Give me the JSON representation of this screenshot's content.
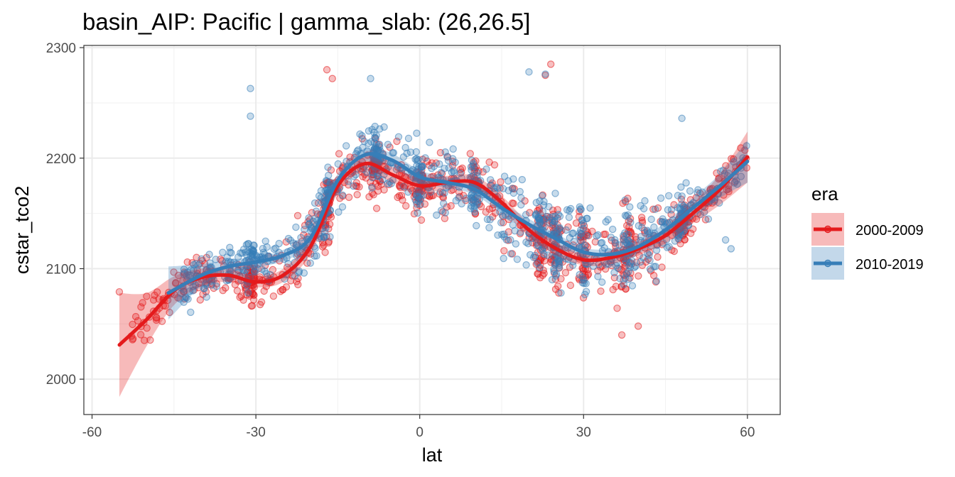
{
  "chart_data": {
    "type": "scatter",
    "title": "basin_AIP: Pacific | gamma_slab:  (26,26.5]",
    "xlabel": "lat",
    "ylabel": "cstar_tco2",
    "xlim": [
      -61.5,
      66
    ],
    "ylim": [
      1968,
      2302
    ],
    "x_ticks": [
      -60,
      -30,
      0,
      30,
      60
    ],
    "x_tick_labels": [
      "-60",
      "-30",
      "0",
      "30",
      "60"
    ],
    "y_ticks": [
      2000,
      2100,
      2200,
      2300
    ],
    "y_tick_labels": [
      "2000",
      "2100",
      "2200",
      "2300"
    ],
    "grid": true,
    "legend": {
      "title": "era",
      "position": "right"
    },
    "series": [
      {
        "name": "2000-2009",
        "color": "#e41a1c",
        "smooth": {
          "x": [
            -55,
            -50,
            -45,
            -40,
            -35,
            -30,
            -25,
            -20,
            -15,
            -10,
            -5,
            0,
            5,
            10,
            15,
            20,
            25,
            30,
            35,
            40,
            45,
            50,
            55,
            60
          ],
          "y": [
            2031,
            2054,
            2080,
            2092,
            2094,
            2088,
            2094,
            2120,
            2175,
            2195,
            2185,
            2175,
            2178,
            2178,
            2160,
            2135,
            2118,
            2108,
            2110,
            2118,
            2130,
            2150,
            2172,
            2201
          ],
          "lower": [
            1984,
            2030,
            2067,
            2084,
            2088,
            2083,
            2088,
            2113,
            2168,
            2188,
            2178,
            2168,
            2172,
            2172,
            2154,
            2129,
            2112,
            2103,
            2104,
            2112,
            2123,
            2141,
            2158,
            2178
          ],
          "upper": [
            2078,
            2078,
            2093,
            2100,
            2100,
            2093,
            2100,
            2127,
            2182,
            2202,
            2192,
            2182,
            2184,
            2184,
            2166,
            2141,
            2124,
            2113,
            2116,
            2124,
            2137,
            2159,
            2186,
            2224
          ]
        }
      },
      {
        "name": "2010-2019",
        "color": "#377eb8",
        "smooth": {
          "x": [
            -46,
            -40,
            -35,
            -30,
            -25,
            -20,
            -15,
            -10,
            -5,
            0,
            5,
            10,
            15,
            20,
            25,
            30,
            35,
            40,
            45,
            50,
            55,
            60
          ],
          "y": [
            2078,
            2094,
            2102,
            2106,
            2112,
            2128,
            2180,
            2203,
            2198,
            2183,
            2178,
            2172,
            2155,
            2140,
            2127,
            2115,
            2113,
            2120,
            2135,
            2155,
            2175,
            2197
          ],
          "lower": [
            2054,
            2084,
            2096,
            2101,
            2107,
            2122,
            2174,
            2197,
            2192,
            2177,
            2173,
            2167,
            2150,
            2135,
            2122,
            2111,
            2108,
            2114,
            2128,
            2146,
            2164,
            2178
          ],
          "upper": [
            2102,
            2104,
            2108,
            2111,
            2117,
            2134,
            2186,
            2209,
            2204,
            2189,
            2183,
            2177,
            2160,
            2145,
            2132,
            2119,
            2118,
            2126,
            2142,
            2164,
            2186,
            2216
          ]
        }
      }
    ],
    "scatter_outliers": {
      "2000-2009": [
        [
          -55,
          2079
        ],
        [
          -50,
          2075
        ],
        [
          -17,
          2280
        ],
        [
          -16,
          2272
        ],
        [
          24,
          2285
        ],
        [
          23,
          2275
        ],
        [
          40,
          2048
        ],
        [
          37,
          2040
        ]
      ],
      "2010-2019": [
        [
          -31,
          2263
        ],
        [
          -31,
          2238
        ],
        [
          -9,
          2272
        ],
        [
          20,
          2278
        ],
        [
          23,
          2276
        ],
        [
          48,
          2236
        ],
        [
          56,
          2126
        ],
        [
          57,
          2118
        ]
      ]
    }
  }
}
